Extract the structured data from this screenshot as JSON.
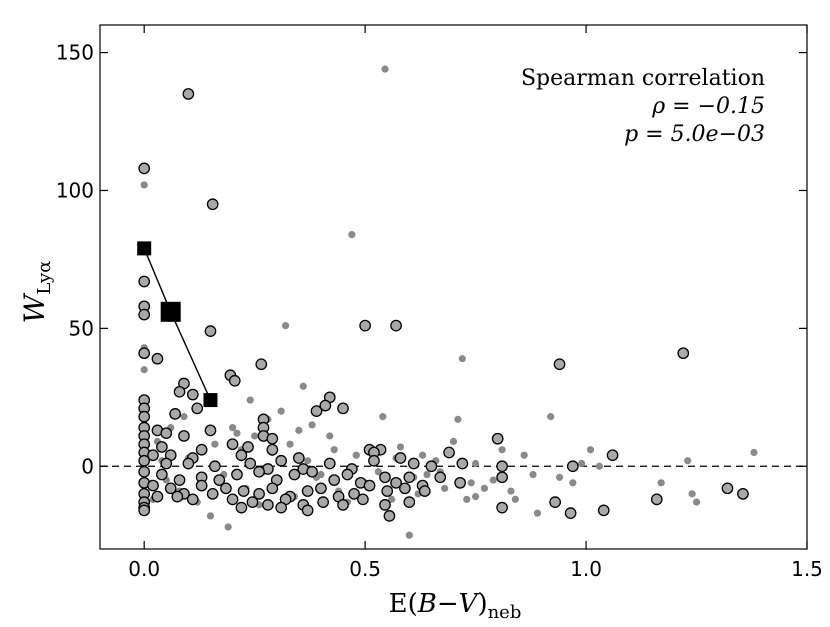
{
  "chart_data": {
    "type": "scatter",
    "xlabel_main": "E(",
    "xlabel_var": "B",
    "xlabel_dash": "−",
    "xlabel_var2": "V",
    "xlabel_close": ")",
    "xlabel_sub": "neb",
    "ylabel_main": "W",
    "ylabel_sub": "Lyα",
    "xlim": [
      -0.1,
      1.5
    ],
    "ylim": [
      -30,
      160
    ],
    "xticks": [
      0.0,
      0.5,
      1.0,
      1.5
    ],
    "xtick_labels": [
      "0.0",
      "0.5",
      "1.0",
      "1.5"
    ],
    "yticks": [
      0,
      50,
      100,
      150
    ],
    "ytick_labels": [
      "0",
      "50",
      "100",
      "150"
    ],
    "reference_line": {
      "y": 0,
      "style": "dashed"
    },
    "annotation": {
      "line1": "Spearman correlation",
      "line2": "ρ = −0.15",
      "line3": "p = 5.0e−03",
      "placement": "top-right"
    },
    "colors": {
      "large": "#a9a9a9",
      "small": "#8a8a8a",
      "edge": "#000000",
      "binned": "#000000"
    },
    "series": [
      {
        "name": "all galaxies (small grey points)",
        "marker": "small-dot",
        "points": [
          [
            0.545,
            144
          ],
          [
            0.0,
            102
          ],
          [
            0.47,
            84
          ],
          [
            0.32,
            51
          ],
          [
            0.0,
            43
          ],
          [
            0.0,
            35
          ],
          [
            0.36,
            29
          ],
          [
            0.72,
            39
          ],
          [
            0.24,
            24
          ],
          [
            0.92,
            18
          ],
          [
            0.71,
            17
          ],
          [
            0.54,
            18
          ],
          [
            0.28,
            17
          ],
          [
            0.31,
            20
          ],
          [
            0.2,
            14
          ],
          [
            0.35,
            13
          ],
          [
            0.25,
            11
          ],
          [
            1.01,
            6
          ],
          [
            1.23,
            2
          ],
          [
            1.38,
            5
          ],
          [
            1.24,
            -10
          ],
          [
            1.25,
            -13
          ],
          [
            1.17,
            -6
          ],
          [
            0.86,
            4
          ],
          [
            0.75,
            1
          ],
          [
            0.77,
            -8
          ],
          [
            0.79,
            -5
          ],
          [
            0.83,
            -9
          ],
          [
            0.84,
            -12
          ],
          [
            0.89,
            -17
          ],
          [
            0.94,
            -4
          ],
          [
            0.99,
            1
          ],
          [
            0.6,
            -25
          ],
          [
            0.19,
            -22
          ],
          [
            0.46,
            -13
          ],
          [
            0.64,
            -3
          ],
          [
            0.68,
            -8
          ],
          [
            0.73,
            -12
          ],
          [
            0.75,
            -11
          ],
          [
            0.1,
            3
          ],
          [
            0.13,
            6
          ],
          [
            0.16,
            8
          ],
          [
            0.22,
            6
          ],
          [
            0.27,
            -2
          ],
          [
            0.29,
            5
          ],
          [
            0.33,
            8
          ],
          [
            0.37,
            2
          ],
          [
            0.4,
            -3
          ],
          [
            0.43,
            6
          ],
          [
            0.48,
            4
          ],
          [
            0.53,
            -2
          ],
          [
            0.57,
            3
          ],
          [
            0.61,
            -4
          ],
          [
            0.66,
            2
          ],
          [
            0.7,
            9
          ],
          [
            0.05,
            -5
          ],
          [
            0.08,
            -9
          ],
          [
            0.12,
            -13
          ],
          [
            0.18,
            -3
          ],
          [
            0.23,
            -8
          ],
          [
            0.26,
            -14
          ],
          [
            0.3,
            -6
          ],
          [
            0.34,
            -11
          ],
          [
            0.39,
            -4
          ],
          [
            0.44,
            -9
          ],
          [
            0.5,
            -6
          ],
          [
            0.56,
            -12
          ],
          [
            0.62,
            -10
          ],
          [
            0.67,
            -2
          ],
          [
            0.03,
            9
          ],
          [
            0.06,
            14
          ],
          [
            0.09,
            18
          ],
          [
            0.02,
            -12
          ],
          [
            0.04,
            2
          ],
          [
            0.15,
            -18
          ],
          [
            0.21,
            12
          ],
          [
            0.38,
            15
          ],
          [
            0.42,
            11
          ],
          [
            0.58,
            7
          ],
          [
            0.63,
            4
          ],
          [
            0.74,
            -6
          ],
          [
            0.81,
            6
          ],
          [
            0.88,
            -3
          ],
          [
            1.03,
            0
          ],
          [
            0.97,
            -6
          ]
        ]
      },
      {
        "name": "galaxies (large circles)",
        "marker": "circle",
        "points": [
          [
            0.1,
            135
          ],
          [
            0.0,
            108
          ],
          [
            0.155,
            95
          ],
          [
            0.0,
            67
          ],
          [
            0.0,
            58
          ],
          [
            0.0,
            55
          ],
          [
            0.5,
            51
          ],
          [
            0.57,
            51
          ],
          [
            0.15,
            49
          ],
          [
            0.0,
            41
          ],
          [
            1.22,
            41
          ],
          [
            0.03,
            39
          ],
          [
            0.265,
            37
          ],
          [
            0.94,
            37
          ],
          [
            0.195,
            33
          ],
          [
            0.205,
            31
          ],
          [
            0.09,
            30
          ],
          [
            0.08,
            27
          ],
          [
            0.11,
            26
          ],
          [
            0.42,
            25
          ],
          [
            0.0,
            24
          ],
          [
            0.0,
            21
          ],
          [
            0.12,
            21
          ],
          [
            0.41,
            22
          ],
          [
            0.45,
            21
          ],
          [
            0.39,
            20
          ],
          [
            0.07,
            19
          ],
          [
            0.0,
            18
          ],
          [
            0.27,
            17
          ],
          [
            0.27,
            14
          ],
          [
            0.0,
            14
          ],
          [
            0.03,
            13
          ],
          [
            0.05,
            12
          ],
          [
            0.15,
            13
          ],
          [
            0.0,
            11
          ],
          [
            0.09,
            11
          ],
          [
            0.27,
            11
          ],
          [
            0.29,
            10
          ],
          [
            0.8,
            10
          ],
          [
            0.0,
            8
          ],
          [
            0.04,
            7
          ],
          [
            0.2,
            8
          ],
          [
            0.235,
            7
          ],
          [
            0.13,
            6
          ],
          [
            0.29,
            6
          ],
          [
            0.0,
            5
          ],
          [
            0.02,
            4
          ],
          [
            0.06,
            4
          ],
          [
            0.11,
            3
          ],
          [
            0.22,
            4
          ],
          [
            0.35,
            3
          ],
          [
            0.51,
            6
          ],
          [
            0.535,
            6
          ],
          [
            0.52,
            5
          ],
          [
            0.69,
            5
          ],
          [
            1.06,
            4
          ],
          [
            0.0,
            2
          ],
          [
            0.05,
            1
          ],
          [
            0.1,
            1
          ],
          [
            0.16,
            0
          ],
          [
            0.24,
            1
          ],
          [
            0.28,
            -1
          ],
          [
            0.31,
            2
          ],
          [
            0.36,
            -1
          ],
          [
            0.42,
            1
          ],
          [
            0.47,
            -1
          ],
          [
            0.52,
            2
          ],
          [
            0.58,
            3
          ],
          [
            0.61,
            1
          ],
          [
            0.65,
            0
          ],
          [
            0.72,
            1
          ],
          [
            0.81,
            0
          ],
          [
            0.97,
            0
          ],
          [
            0.0,
            -2
          ],
          [
            0.04,
            -3
          ],
          [
            0.08,
            -5
          ],
          [
            0.13,
            -4
          ],
          [
            0.17,
            -5
          ],
          [
            0.21,
            -3
          ],
          [
            0.26,
            -2
          ],
          [
            0.3,
            -5
          ],
          [
            0.34,
            -3
          ],
          [
            0.38,
            -2
          ],
          [
            0.43,
            -5
          ],
          [
            0.46,
            -3
          ],
          [
            0.49,
            -6
          ],
          [
            0.545,
            -4
          ],
          [
            0.57,
            -6
          ],
          [
            0.6,
            -4
          ],
          [
            0.63,
            -7
          ],
          [
            0.67,
            -4
          ],
          [
            0.715,
            -6
          ],
          [
            0.81,
            -4
          ],
          [
            0.0,
            -6
          ],
          [
            0.02,
            -7
          ],
          [
            0.06,
            -8
          ],
          [
            0.09,
            -10
          ],
          [
            0.13,
            -7
          ],
          [
            0.185,
            -8
          ],
          [
            0.225,
            -9
          ],
          [
            0.26,
            -10
          ],
          [
            0.29,
            -8
          ],
          [
            0.33,
            -11
          ],
          [
            0.37,
            -9
          ],
          [
            0.4,
            -8
          ],
          [
            0.44,
            -11
          ],
          [
            0.475,
            -10
          ],
          [
            0.51,
            -7
          ],
          [
            0.55,
            -9
          ],
          [
            0.59,
            -8
          ],
          [
            0.635,
            -9
          ],
          [
            0.0,
            -10
          ],
          [
            0.03,
            -11
          ],
          [
            0.075,
            -11
          ],
          [
            0.11,
            -12
          ],
          [
            0.155,
            -10
          ],
          [
            0.2,
            -12
          ],
          [
            0.245,
            -13
          ],
          [
            0.28,
            -14
          ],
          [
            0.32,
            -12
          ],
          [
            0.36,
            -14
          ],
          [
            0.405,
            -13
          ],
          [
            0.45,
            -14
          ],
          [
            0.495,
            -12
          ],
          [
            0.545,
            -14
          ],
          [
            0.6,
            -13
          ],
          [
            0.0,
            -13
          ],
          [
            0.0,
            -15
          ],
          [
            0.0,
            -16
          ],
          [
            0.22,
            -15
          ],
          [
            0.31,
            -15
          ],
          [
            0.37,
            -16
          ],
          [
            0.555,
            -18
          ],
          [
            0.81,
            -15
          ],
          [
            0.93,
            -13
          ],
          [
            0.965,
            -17
          ],
          [
            1.04,
            -16
          ],
          [
            1.16,
            -12
          ],
          [
            1.32,
            -8
          ],
          [
            1.355,
            -10
          ]
        ]
      },
      {
        "name": "binned means",
        "marker": "square",
        "points": [
          [
            0.0,
            79
          ],
          [
            0.06,
            56
          ],
          [
            0.15,
            24
          ]
        ],
        "sizes": [
          "medium",
          "large",
          "medium"
        ]
      }
    ]
  }
}
